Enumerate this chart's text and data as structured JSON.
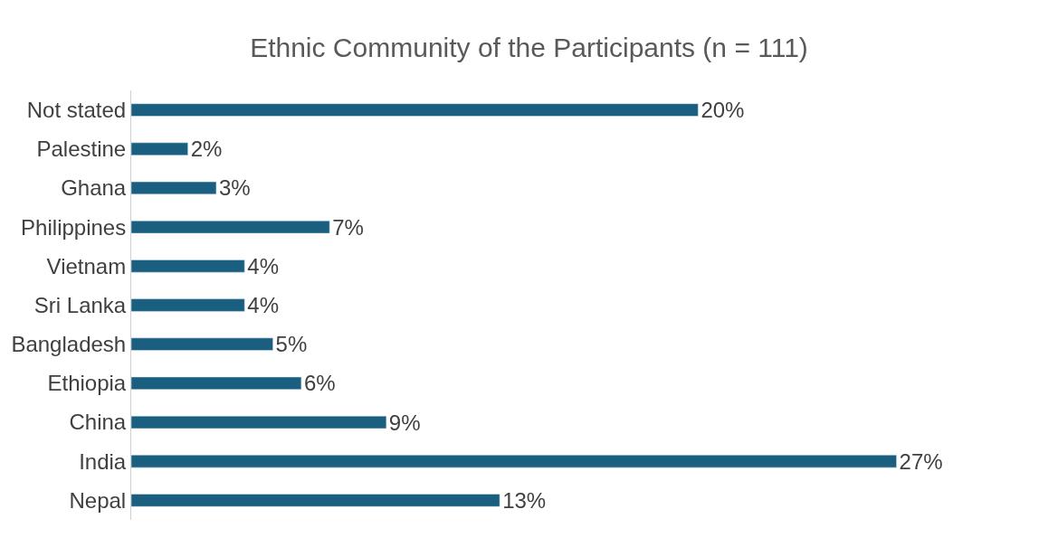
{
  "chart_data": {
    "type": "bar",
    "orientation": "horizontal",
    "title": "Ethnic Community of the Participants (n = 111)",
    "categories": [
      "Not stated",
      "Palestine",
      "Ghana",
      "Philippines",
      "Vietnam",
      "Sri Lanka",
      "Bangladesh",
      "Ethiopia",
      "China",
      "India",
      "Nepal"
    ],
    "values": [
      20,
      2,
      3,
      7,
      4,
      4,
      5,
      6,
      9,
      27,
      13
    ],
    "value_labels": [
      "20%",
      "2%",
      "3%",
      "7%",
      "4%",
      "4%",
      "5%",
      "6%",
      "9%",
      "27%",
      "13%"
    ],
    "color": "#1b5f80"
  }
}
